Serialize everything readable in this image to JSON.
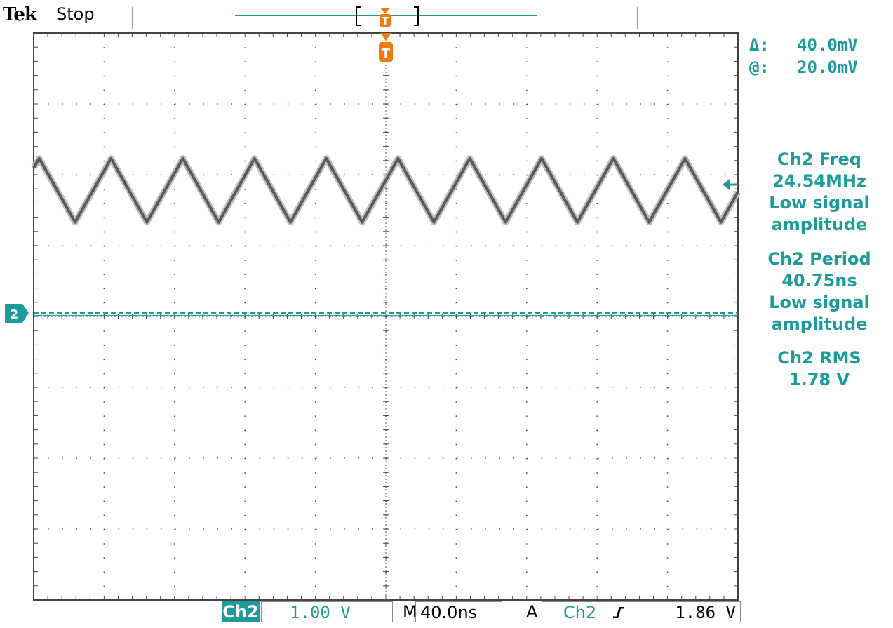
{
  "header": {
    "brand": "Tek",
    "status": "Stop",
    "record_marker": "T"
  },
  "cursor_readouts": [
    {
      "symbol": "Δ:",
      "value": "40.0mV"
    },
    {
      "symbol": "@:",
      "value": "20.0mV"
    }
  ],
  "measurements": [
    {
      "title": "Ch2 Freq",
      "value": "24.54MHz",
      "note_line1": "Low signal",
      "note_line2": "amplitude"
    },
    {
      "title": "Ch2 Period",
      "value": "40.75ns",
      "note_line1": "Low signal",
      "note_line2": "amplitude"
    },
    {
      "title": "Ch2 RMS",
      "value": "1.78 V"
    }
  ],
  "graticule": {
    "trigger_marker": "T",
    "channel_marker": "2",
    "trigger_level_marker": "←"
  },
  "bottom_bar": {
    "channel_label": "Ch2",
    "volts_per_div": "1.00 V",
    "timebase_prefix": "M",
    "timebase": "40.0ns",
    "trigger_mode": "A",
    "trigger_source": "Ch2",
    "trigger_slope_icon": "rising-edge",
    "trigger_level": "1.86 V"
  },
  "colors": {
    "channel2": "#1d9a9a",
    "trigger": "#f07a10",
    "waveform": "#6a6a6a",
    "grid": "#333333"
  },
  "waveform": {
    "channel": "Ch2",
    "shape": "triangle",
    "frequency": "24.54MHz",
    "period_ns": 40.75,
    "time_per_div_ns": 40,
    "volts_per_div": 1.0,
    "peak_divisions_above_ground": 2.2,
    "trough_divisions_above_ground": 1.3
  }
}
